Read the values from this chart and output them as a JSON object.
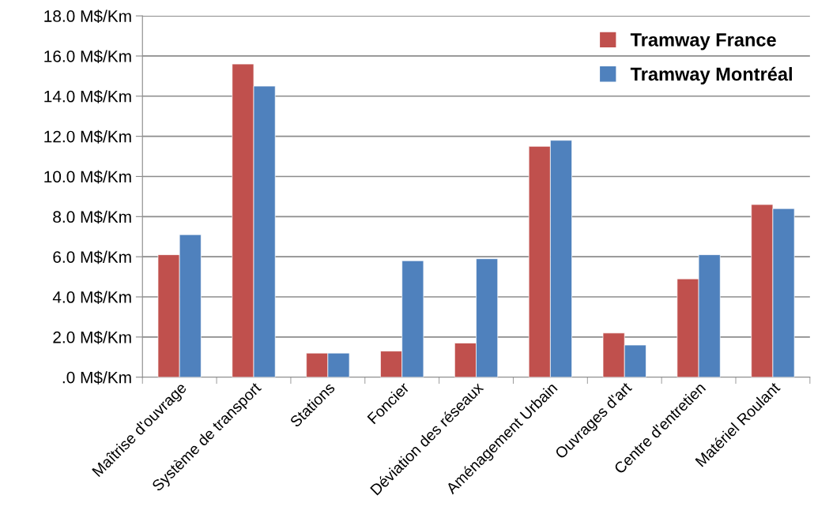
{
  "chart_data": {
    "type": "bar",
    "categories": [
      "Maîtrise d'ouvrage",
      "Système de transport",
      "Stations",
      "Foncier",
      "Déviation des réseaux",
      "Aménagement Urbain",
      "Ouvrages d'art",
      "Centre d'entretien",
      "Matériel Roulant"
    ],
    "series": [
      {
        "name": "Tramway France",
        "color": "#c0504d",
        "values": [
          6.1,
          15.6,
          1.2,
          1.3,
          1.7,
          11.5,
          2.2,
          4.9,
          8.6
        ]
      },
      {
        "name": "Tramway Montréal",
        "color": "#4f81bd",
        "values": [
          7.1,
          14.5,
          1.2,
          5.8,
          5.9,
          11.8,
          1.6,
          6.1,
          8.4
        ]
      }
    ],
    "ylim": [
      0,
      18
    ],
    "yticks": [
      {
        "value": 0,
        "label": ".0 M$/Km"
      },
      {
        "value": 2,
        "label": "2.0 M$/Km"
      },
      {
        "value": 4,
        "label": "4.0 M$/Km"
      },
      {
        "value": 6,
        "label": "6.0 M$/Km"
      },
      {
        "value": 8,
        "label": "8.0 M$/Km"
      },
      {
        "value": 10,
        "label": "10.0 M$/Km"
      },
      {
        "value": 12,
        "label": "12.0 M$/Km"
      },
      {
        "value": 14,
        "label": "14.0 M$/Km"
      },
      {
        "value": 16,
        "label": "16.0 M$/Km"
      },
      {
        "value": 18,
        "label": "18.0 M$/Km"
      }
    ],
    "grid": "y",
    "legend": "top right"
  }
}
